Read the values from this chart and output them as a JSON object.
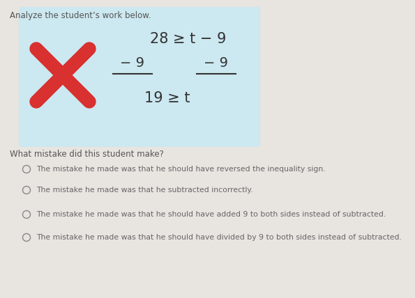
{
  "title": "Analyze the student’s work below.",
  "box_bg": "#cce8f0",
  "x_mark_color": "#d93030",
  "math_line1": "28 ≥ t − 9",
  "math_line2_left": "− 9",
  "math_line2_right": "− 9",
  "math_line3": "19 ≥ t",
  "question": "What mistake did this student make?",
  "options": [
    "The mistake he made was that he should have reversed the inequality sign.",
    "The mistake he made was that he subtracted incorrectly.",
    "The mistake he made was that he should have added 9 to both sides instead of subtracted.",
    "The mistake he made was that he should have divided by 9 to both sides instead of subtracted."
  ],
  "bg_color": "#e8e4e0",
  "font_color_title": "#555555",
  "font_color_math": "#333333",
  "font_color_question": "#555555",
  "font_color_option": "#666666",
  "title_fontsize": 8.5,
  "math_fontsize": 15,
  "question_fontsize": 8.5,
  "option_fontsize": 7.8
}
